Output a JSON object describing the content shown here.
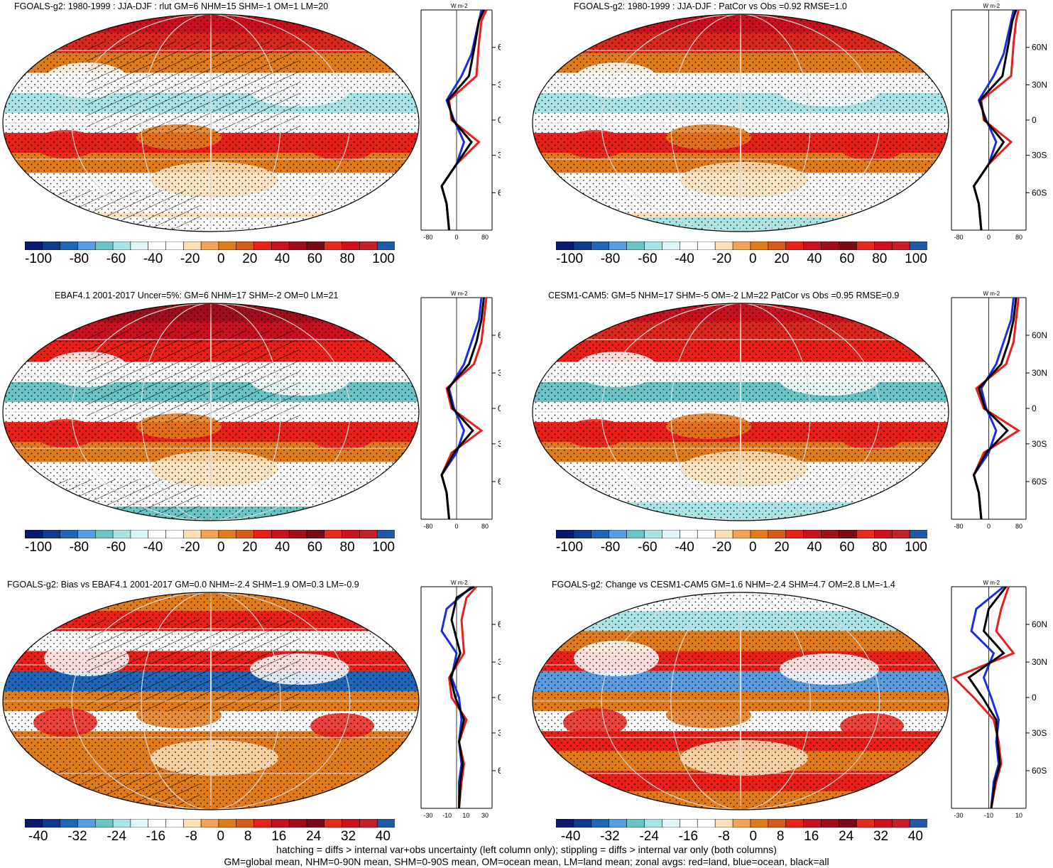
{
  "colorbar_colors": [
    "#0a1a6e",
    "#0f3c8c",
    "#1f66b8",
    "#5a9be0",
    "#6cc3c3",
    "#a9e4e4",
    "#dff5f7",
    "#ffffff",
    "#ffffff",
    "#fde0b8",
    "#f2a35a",
    "#e07b1c",
    "#d65a1a",
    "#e8201a",
    "#c8101e",
    "#a00e1c",
    "#7a0a18",
    "#e82a1e",
    "#d0101c",
    "#c81e2a",
    "#1f5aa8"
  ],
  "zonal_axis": {
    "unit_label": "W m-2",
    "lat_labels": [
      "60N",
      "30N",
      "0",
      "30S",
      "60S"
    ]
  },
  "panels": [
    {
      "id": "p1",
      "title": "FGOALS-g2: 1980-1999 : JJA-DJF : rlut GM=6 NHM=15 SHM=-1 OM=1 LM=20",
      "colorbar_labels": [
        "-100",
        "-80",
        "-60",
        "-40",
        "-20",
        "0",
        "20",
        "40",
        "60",
        "80",
        "100"
      ],
      "zonal_ticks": [
        "-80",
        "0",
        "80"
      ],
      "hatched": true
    },
    {
      "id": "p2",
      "title": "FGOALS-g2: 1980-1999 : JJA-DJF : PatCor vs Obs =0.92 RMSE=1.0",
      "colorbar_labels": [
        "-100",
        "-80",
        "-60",
        "-40",
        "-20",
        "0",
        "20",
        "40",
        "60",
        "80",
        "100"
      ],
      "zonal_ticks": [
        "-80",
        "0",
        "80"
      ],
      "hatched": false
    },
    {
      "id": "p3",
      "title": "EBAF4.1 2001-2017 Uncer=5%: GM=6 NHM=17 SHM=-2 OM=0 LM=21",
      "colorbar_labels": [
        "-100",
        "-80",
        "-60",
        "-40",
        "-20",
        "0",
        "20",
        "40",
        "60",
        "80",
        "100"
      ],
      "zonal_ticks": [
        "-80",
        "0",
        "80"
      ],
      "hatched": true
    },
    {
      "id": "p4",
      "title": "CESM1-CAM5: GM=5 NHM=17 SHM=-5 OM=-2 LM=22 PatCor vs Obs =0.95 RMSE=0.9",
      "colorbar_labels": [
        "-100",
        "-80",
        "-60",
        "-40",
        "-20",
        "0",
        "20",
        "40",
        "60",
        "80",
        "100"
      ],
      "zonal_ticks": [
        "-80",
        "0",
        "80"
      ],
      "hatched": false
    },
    {
      "id": "p5",
      "title": "FGOALS-g2: Bias vs EBAF4.1 2001-2017 GM=0.0 NHM=-2.4 SHM=1.9 OM=0.3 LM=-0.9",
      "colorbar_labels": [
        "-40",
        "-32",
        "-24",
        "-16",
        "-8",
        "0",
        "8",
        "16",
        "24",
        "32",
        "40"
      ],
      "zonal_ticks": [
        "-30",
        "-10",
        "10",
        "30"
      ],
      "hatched": true
    },
    {
      "id": "p6",
      "title": "FGOALS-g2: Change vs CESM1-CAM5 GM=1.6 NHM=-2.4 SHM=4.7 OM=2.8 LM=-1.4",
      "colorbar_labels": [
        "-40",
        "-32",
        "-24",
        "-16",
        "-8",
        "0",
        "8",
        "16",
        "24",
        "32",
        "40"
      ],
      "zonal_ticks": [
        "-30",
        "-10",
        "10"
      ],
      "hatched": false
    }
  ],
  "footer": {
    "line1": "hatching = diffs > internal var+obs uncertainty (left column only); stippling = diffs > internal var only (both columns)",
    "line2": "GM=global mean, NHM=0-90N mean, SHM=0-90S mean, OM=ocean mean, LM=land mean; zonal avgs: red=land, blue=ocean, black=all"
  }
}
